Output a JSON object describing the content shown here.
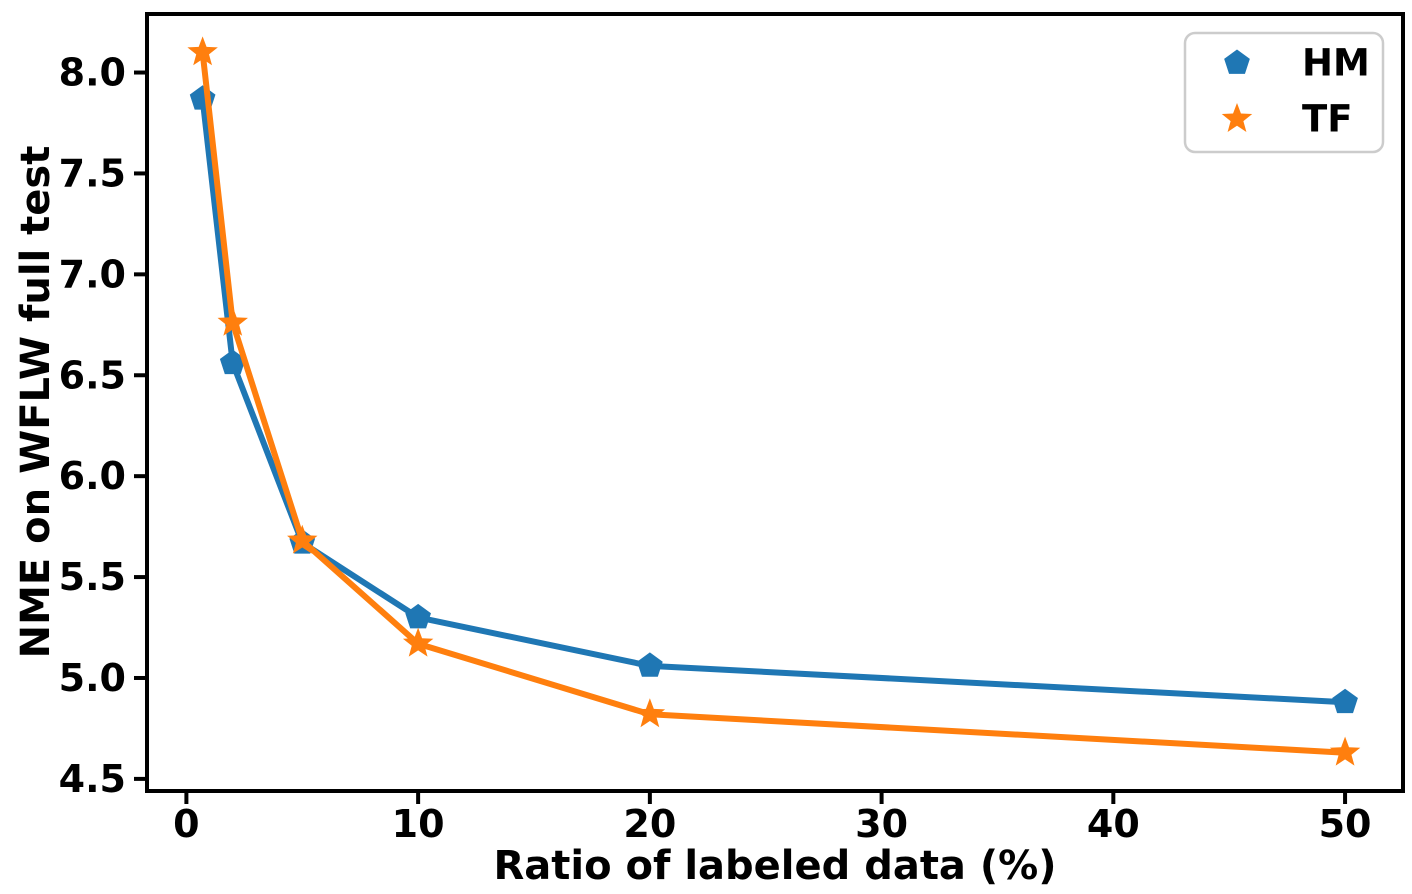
{
  "figure": {
    "background": "#ffffff"
  },
  "chart_data": {
    "type": "line",
    "x": [
      0.7,
      2,
      5,
      10,
      20,
      50
    ],
    "series": [
      {
        "name": "HM",
        "marker": "pentagon",
        "color": "#1f77b4",
        "values": [
          7.87,
          6.56,
          5.67,
          5.3,
          5.06,
          4.88
        ]
      },
      {
        "name": "TF",
        "marker": "star",
        "color": "#ff7f0e",
        "values": [
          8.1,
          6.76,
          5.68,
          5.17,
          4.82,
          4.63
        ]
      }
    ],
    "title": "",
    "xlabel": "Ratio of labeled data (%)",
    "ylabel": "NME on WFLW full test",
    "xlim": [
      -1.7,
      52.5
    ],
    "ylim": [
      4.44,
      8.29
    ],
    "xticks": [
      0,
      10,
      20,
      30,
      40,
      50
    ],
    "yticks": [
      4.5,
      5.0,
      5.5,
      6.0,
      6.5,
      7.0,
      7.5,
      8.0
    ],
    "grid": false,
    "legend_position": "top-right",
    "axis_color": "#000000",
    "line_width": 6
  }
}
